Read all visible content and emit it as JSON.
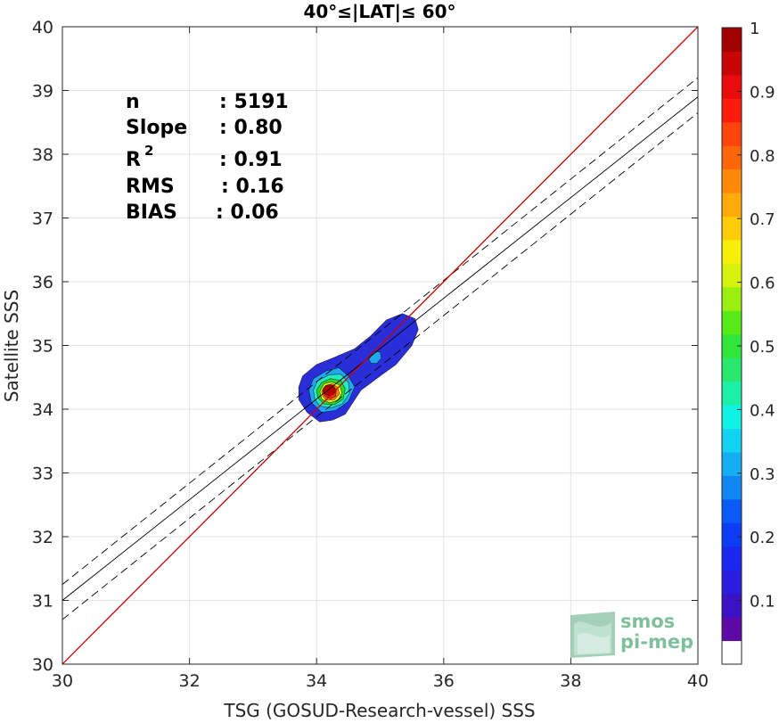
{
  "chart_data": {
    "type": "scatter",
    "title": "40°≤|LAT|≤ 60°",
    "xlabel": "TSG (GOSUD-Research-vessel) SSS",
    "ylabel": "Satellite SSS",
    "xlim": [
      30,
      40
    ],
    "ylim": [
      30,
      40
    ],
    "xticks": [
      "30",
      "32",
      "34",
      "36",
      "38",
      "40"
    ],
    "yticks": [
      "30",
      "31",
      "32",
      "33",
      "34",
      "35",
      "36",
      "37",
      "38",
      "39",
      "40"
    ],
    "grid": true,
    "stats": [
      {
        "name": "n",
        "value": ": 5191"
      },
      {
        "name": "Slope",
        "value": ": 0.80"
      },
      {
        "name": "R",
        "sup": "2",
        "value": ": 0.91"
      },
      {
        "name": "RMS",
        "value": ": 0.16"
      },
      {
        "name": "BIAS",
        "value": ": 0.06"
      }
    ],
    "identity_line": {
      "x": [
        30,
        40
      ],
      "y": [
        30,
        40
      ],
      "color": "#cc0000"
    },
    "fit_line": {
      "x": [
        30,
        40
      ],
      "y": [
        31.0,
        38.9
      ],
      "color": "#000000"
    },
    "fit_band_upper": {
      "x": [
        30,
        40
      ],
      "y": [
        31.25,
        39.2
      ]
    },
    "fit_band_lower": {
      "x": [
        30,
        40
      ],
      "y": [
        30.7,
        38.65
      ]
    },
    "density_peak": {
      "x": 34.2,
      "y": 34.3
    },
    "colorbar": {
      "ticks": [
        "0.1",
        "0.2",
        "0.3",
        "0.4",
        "0.5",
        "0.6",
        "0.7",
        "0.8",
        "0.9",
        "1"
      ],
      "tick_values": [
        0.1,
        0.2,
        0.3,
        0.4,
        0.5,
        0.6,
        0.7,
        0.8,
        0.9,
        1.0
      ],
      "range": [
        0,
        1
      ]
    }
  },
  "logo": {
    "line1": "smos",
    "line2": "pi-mep"
  }
}
